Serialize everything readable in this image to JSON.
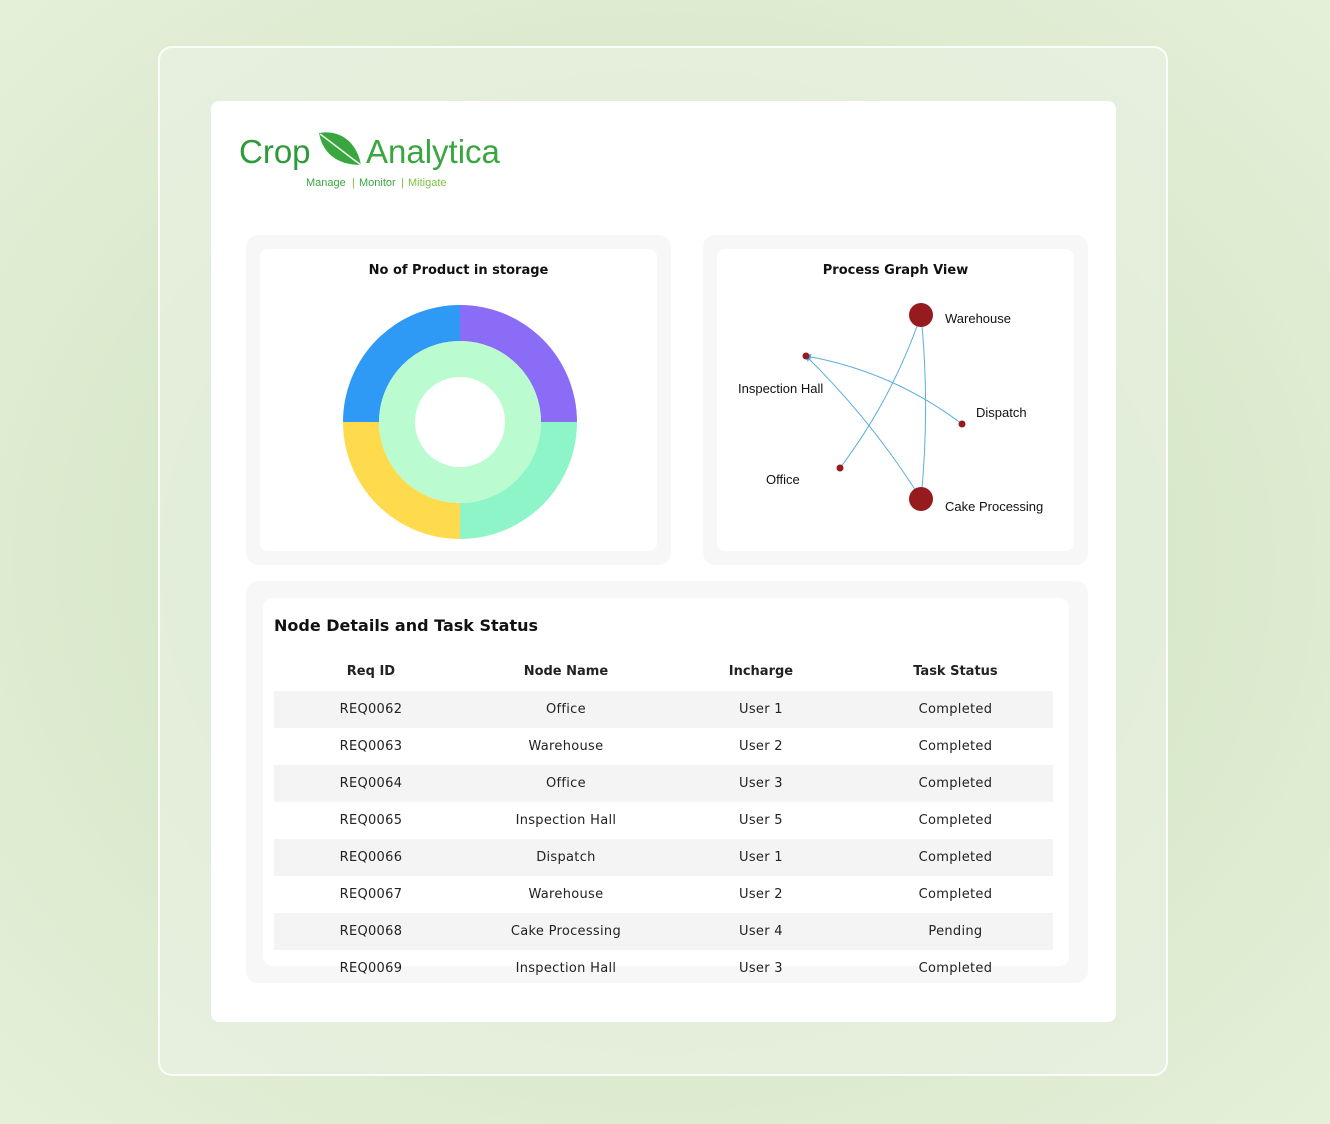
{
  "brand": {
    "name_part1": "Crop",
    "name_part2": "Analytica",
    "tagline": [
      "Manage",
      "Monitor",
      "Mitigate"
    ],
    "colors": {
      "dark_green": "#2e9a3a",
      "light_green": "#7cc043"
    }
  },
  "storage_chart": {
    "title": "No of Product in storage",
    "chart_data": {
      "type": "pie",
      "outer_ring": [
        {
          "value": 25,
          "color": "#8b6cf7"
        },
        {
          "value": 25,
          "color": "#8ef5c8"
        },
        {
          "value": 25,
          "color": "#fedb4c"
        },
        {
          "value": 25,
          "color": "#2f99f6"
        }
      ],
      "inner_ring": [
        {
          "value": 100,
          "color": "#bafbcf"
        }
      ]
    }
  },
  "graph": {
    "title": "Process Graph View",
    "node_color": "#961b1e",
    "edge_color": "#5aaee0",
    "nodes": [
      {
        "id": "warehouse",
        "label": "Warehouse",
        "size": "large"
      },
      {
        "id": "inspection",
        "label": "Inspection Hall",
        "size": "small"
      },
      {
        "id": "dispatch",
        "label": "Dispatch",
        "size": "small"
      },
      {
        "id": "office",
        "label": "Office",
        "size": "small"
      },
      {
        "id": "cake",
        "label": "Cake Processing",
        "size": "large"
      }
    ],
    "edges": [
      {
        "from": "office",
        "to": "warehouse"
      },
      {
        "from": "warehouse",
        "to": "cake"
      },
      {
        "from": "cake",
        "to": "inspection"
      },
      {
        "from": "dispatch",
        "to": "inspection"
      }
    ]
  },
  "table": {
    "title": "Node Details and Task Status",
    "headers": [
      "Req ID",
      "Node Name",
      "Incharge",
      "Task Status"
    ],
    "rows": [
      [
        "REQ0062",
        "Office",
        "User 1",
        "Completed"
      ],
      [
        "REQ0063",
        "Warehouse",
        "User 2",
        "Completed"
      ],
      [
        "REQ0064",
        "Office",
        "User 3",
        "Completed"
      ],
      [
        "REQ0065",
        "Inspection Hall",
        "User 5",
        "Completed"
      ],
      [
        "REQ0066",
        "Dispatch",
        "User 1",
        "Completed"
      ],
      [
        "REQ0067",
        "Warehouse",
        "User 2",
        "Completed"
      ],
      [
        "REQ0068",
        "Cake Processing",
        "User 4",
        "Pending"
      ],
      [
        "REQ0069",
        "Inspection Hall",
        "User 3",
        "Completed"
      ]
    ]
  }
}
